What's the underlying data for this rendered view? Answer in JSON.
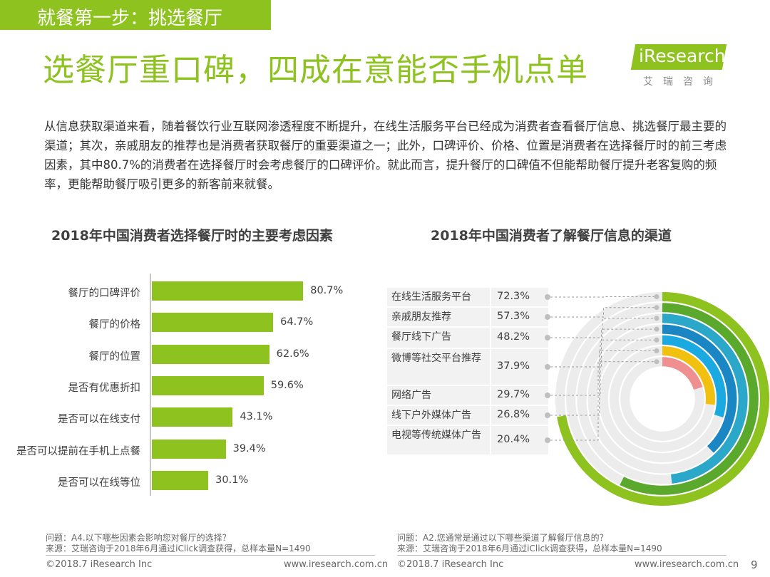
{
  "header": {
    "step": "就餐第一步：挑选餐厅",
    "headline": "选餐厅重口碑，四成在意能否手机点单",
    "logo_text": "iResearch",
    "logo_sub": "艾瑞咨询"
  },
  "intro": "从信息获取渠道来看，随着餐饮行业互联网渗透程度不断提升，在线生活服务平台已经成为消费者查看餐厅信息、挑选餐厅最主要的渠道；其次，亲戚朋友的推荐也是消费者获取餐厅的重要渠道之一；此外，口碑评价、价格、位置是消费者在选择餐厅时的前三考虑因素，其中80.7%的消费者在选择餐厅时会考虑餐厅的口碑评价。就此而言，提升餐厅的口碑值不但能帮助餐厅提升老客复购的频率，更能帮助餐厅吸引更多的新客前来就餐。",
  "chart_data": [
    {
      "type": "bar",
      "orientation": "horizontal",
      "title": "2018年中国消费者选择餐厅时的主要考虑因素",
      "categories": [
        "餐厅的口碑评价",
        "餐厅的价格",
        "餐厅的位置",
        "是否有优惠折扣",
        "是否可以在线支付",
        "是否可以提前在手机上点餐",
        "是否可以在线等位"
      ],
      "values": [
        80.7,
        64.7,
        62.6,
        59.6,
        43.1,
        39.4,
        30.1
      ],
      "value_labels": [
        "80.7%",
        "64.7%",
        "62.6%",
        "59.6%",
        "43.1%",
        "39.4%",
        "30.1%"
      ],
      "unit": "%",
      "xlim": [
        0,
        100
      ],
      "color": "#8dc21f"
    },
    {
      "type": "radial-bar",
      "title": "2018年中国消费者了解餐厅信息的渠道",
      "categories": [
        "在线生活服务平台",
        "亲戚朋友推荐",
        "餐厅线下广告",
        "微博等社交平台推荐",
        "网络广告",
        "线下户外媒体广告",
        "电视等传统媒体广告"
      ],
      "values": [
        72.3,
        57.3,
        48.2,
        37.9,
        29.7,
        26.8,
        20.4
      ],
      "value_labels": [
        "72.3%",
        "57.3%",
        "48.2%",
        "37.9%",
        "29.7%",
        "26.8%",
        "20.4%"
      ],
      "unit": "%",
      "max": 100,
      "colors": [
        "#8dc21f",
        "#5aa92c",
        "#2aa7c9",
        "#1b86c4",
        "#1aa9e0",
        "#f2c10f",
        "#f08f8f"
      ],
      "track_color": "#ececec"
    }
  ],
  "notes": {
    "left_q": "问题：A4.以下哪些因素会影响您对餐厅的选择？",
    "left_src": "来源：艾瑞咨询于2018年6月通过iClick调查获得，总样本量N=1490",
    "right_q": "问题：A2.您通常是通过以下哪些渠道了解餐厅信息的？",
    "right_src": "来源：艾瑞咨询于2018年6月通过iClick调查获得，总样本量N=1490"
  },
  "footer": {
    "left_copy": "©2018.7 iResearch Inc",
    "left_url": "www.iresearch.com.cn",
    "right_copy": "©2018.7 iResearch Inc",
    "right_url": "www.iresearch.com.cn",
    "page": "9"
  }
}
